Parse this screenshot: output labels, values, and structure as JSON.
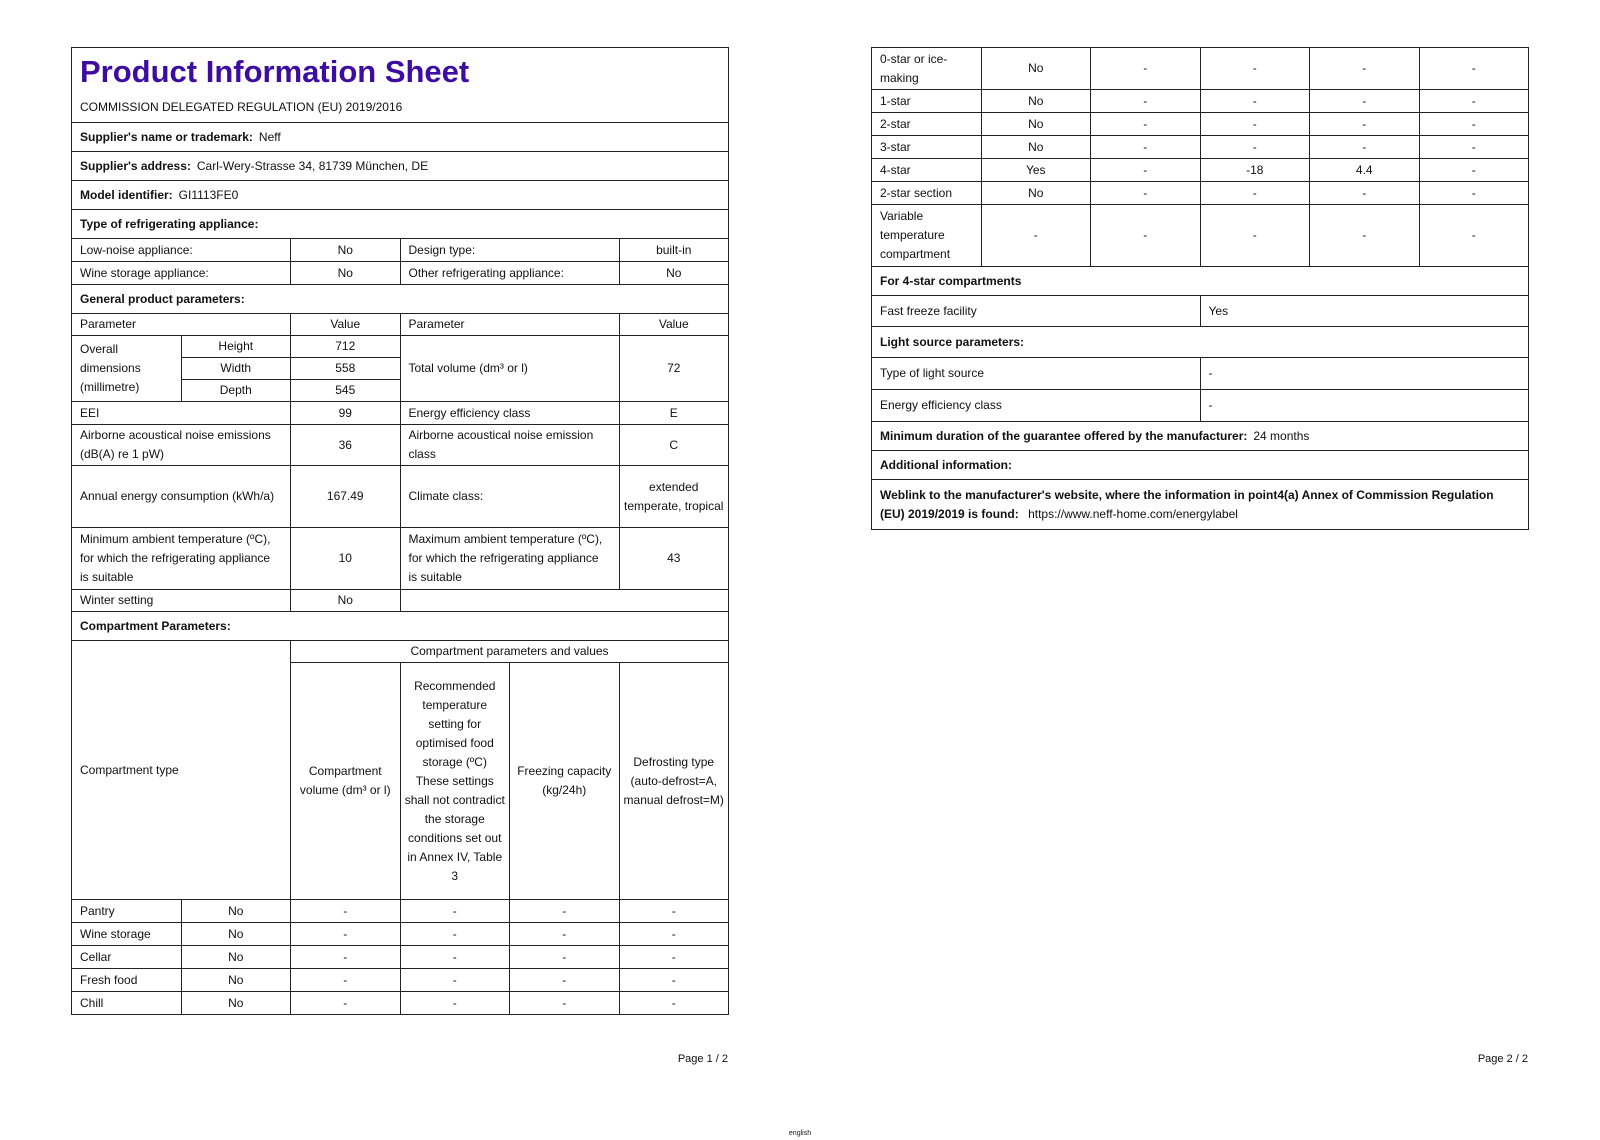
{
  "page1": {
    "title": "Product Information Sheet",
    "regulation": "COMMISSION DELEGATED REGULATION (EU) 2019/2016",
    "supplier_name": {
      "label": "Supplier's name or trademark:",
      "value": "Neff"
    },
    "supplier_address": {
      "label": "Supplier's address:",
      "value": "Carl-Wery-Strasse 34, 81739 München, DE"
    },
    "model_identifier": {
      "label": "Model identifier:",
      "value": "GI1113FE0"
    },
    "type_heading": "Type of refrigerating appliance:",
    "type_rows": [
      [
        "Low-noise appliance:",
        "No",
        "Design type:",
        "built-in"
      ],
      [
        "Wine storage appliance:",
        "No",
        "Other refrigerating appliance:",
        "No"
      ]
    ],
    "general_heading": "General product parameters:",
    "general_header": [
      "Parameter",
      "Value",
      "Parameter",
      "Value"
    ],
    "dimensions": {
      "label": "Overall dimensions (millimetre)",
      "rows": [
        [
          "Height",
          "712"
        ],
        [
          "Width",
          "558"
        ],
        [
          "Depth",
          "545"
        ]
      ],
      "parameter": "Total volume (dm³ or l)",
      "value": "72"
    },
    "general_rows": [
      [
        "EEI",
        "99",
        "Energy efficiency class",
        "E"
      ],
      [
        "Airborne acoustical noise emissions (dB(A) re 1 pW)",
        "36",
        "Airborne acoustical noise emission class",
        "C"
      ],
      [
        "Annual energy consumption (kWh/a)",
        "167.49",
        "Climate class:",
        "extended temperate, tropical"
      ],
      [
        "Minimum ambient temperature (ºC), for which the refrigerating appliance is suitable",
        "10",
        "Maximum ambient temperature (ºC), for which the refrigerating appliance is suitable",
        "43"
      ]
    ],
    "winter_setting": [
      "Winter setting",
      "No"
    ],
    "compartment_heading": "Compartment Parameters:",
    "compartment_group": "Compartment parameters and values",
    "compartment_header": [
      "Compartment type",
      "Compartment volume (dm³ or l)",
      "Recommended temperature setting for optimised food storage (ºC) These settings shall not contradict the storage conditions set out in Annex IV, Table 3",
      "Freezing capacity (kg/24h)",
      "Defrosting type (auto-defrost=A, manual defrost=M)"
    ],
    "compartment_rows": [
      [
        "Pantry",
        "No",
        "-",
        "-",
        "-",
        "-"
      ],
      [
        "Wine storage",
        "No",
        "-",
        "-",
        "-",
        "-"
      ],
      [
        "Cellar",
        "No",
        "-",
        "-",
        "-",
        "-"
      ],
      [
        "Fresh food",
        "No",
        "-",
        "-",
        "-",
        "-"
      ],
      [
        "Chill",
        "No",
        "-",
        "-",
        "-",
        "-"
      ]
    ],
    "page_number": "Page 1 / 2"
  },
  "page2": {
    "compartment_rows": [
      [
        "0-star or ice-making",
        "No",
        "-",
        "-",
        "-",
        "-"
      ],
      [
        "1-star",
        "No",
        "-",
        "-",
        "-",
        "-"
      ],
      [
        "2-star",
        "No",
        "-",
        "-",
        "-",
        "-"
      ],
      [
        "3-star",
        "No",
        "-",
        "-",
        "-",
        "-"
      ],
      [
        "4-star",
        "Yes",
        "-",
        "-18",
        "4.4",
        "-"
      ],
      [
        "2-star section",
        "No",
        "-",
        "-",
        "-",
        "-"
      ],
      [
        "Variable temperature compartment",
        "-",
        "-",
        "-",
        "-",
        "-"
      ]
    ],
    "four_star_heading": "For 4-star compartments",
    "fast_freeze": [
      "Fast freeze facility",
      "Yes"
    ],
    "light_heading": "Light source parameters:",
    "light_rows": [
      [
        "Type of light source",
        "-"
      ],
      [
        "Energy efficiency class",
        "-"
      ]
    ],
    "guarantee": {
      "label": "Minimum duration of the guarantee offered by the manufacturer:",
      "value": "24 months"
    },
    "additional": "Additional information:",
    "weblink": {
      "label": "Weblink to the manufacturer's website, where the information in point4(a) Annex of Commission Regulation (EU) 2019/2019 is found:",
      "value": "https://www.neff-home.com/energylabel"
    },
    "page_number": "Page 2 / 2"
  },
  "footer": "english"
}
